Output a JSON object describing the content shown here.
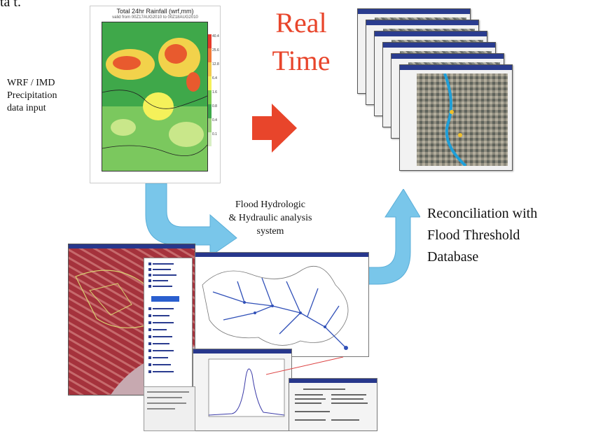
{
  "corner_fragment": "ta t.",
  "rainfall_map": {
    "title": "Total 24hr Rainfall (wrf,mm)",
    "subtitle": "valid from 00Z17AUG2010 to 00Z18AUG2010",
    "legend_values": [
      "40.4",
      "25.6",
      "12.8",
      "6.4",
      "1.6",
      "0.8",
      "0.4",
      "0.1"
    ],
    "legend_colors": [
      "#e53a2b",
      "#f07a38",
      "#f2c94a",
      "#f5f15a",
      "#7ccb4f",
      "#3da84a",
      "#9ad17a",
      "#d8efc4"
    ]
  },
  "wrf_label": [
    "WRF / IMD",
    "Precipitation",
    "data input"
  ],
  "real_time_label": [
    "Real",
    "Time"
  ],
  "flood_label": [
    "Flood Hydrologic",
    "& Hydraulic analysis",
    "system"
  ],
  "reconciliation_label": [
    "Reconciliation with",
    "Flood Threshold",
    "Database"
  ],
  "colors": {
    "real_time_red": "#e8452b",
    "arrow_blue": "#79c6ea",
    "arrow_red": "#e8452b"
  }
}
